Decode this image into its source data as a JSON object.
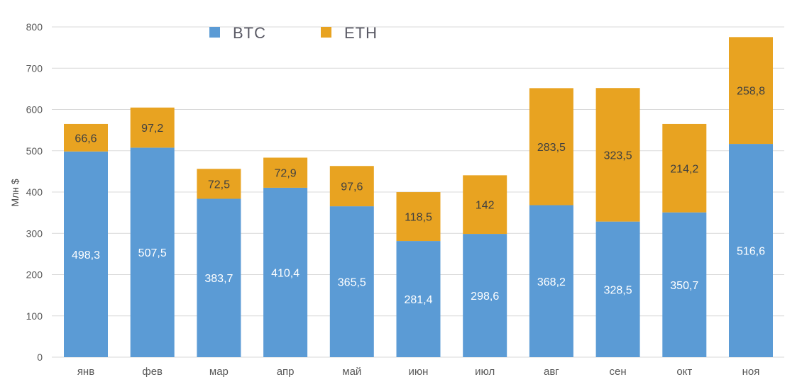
{
  "chart_data": {
    "type": "bar",
    "stacked": true,
    "title": "",
    "xlabel": "",
    "ylabel": "Млн $",
    "ylim": [
      0,
      800
    ],
    "yticks": [
      0,
      100,
      200,
      300,
      400,
      500,
      600,
      700,
      800
    ],
    "grid": true,
    "legend_position": "top-center",
    "categories": [
      "янв",
      "фев",
      "мар",
      "апр",
      "май",
      "июн",
      "июл",
      "авг",
      "сен",
      "окт",
      "ноя"
    ],
    "series": [
      {
        "name": "BTC",
        "color": "#5b9bd5",
        "values": [
          498.3,
          507.5,
          383.7,
          410.4,
          365.5,
          281.4,
          298.6,
          368.2,
          328.5,
          350.7,
          516.6
        ],
        "labels": [
          "498,3",
          "507,5",
          "383,7",
          "410,4",
          "365,5",
          "281,4",
          "298,6",
          "368,2",
          "328,5",
          "350,7",
          "516,6"
        ]
      },
      {
        "name": "ETH",
        "color": "#e8a321",
        "values": [
          66.6,
          97.2,
          72.5,
          72.9,
          97.6,
          118.5,
          142,
          283.5,
          323.5,
          214.2,
          258.8
        ],
        "labels": [
          "66,6",
          "97,2",
          "72,5",
          "72,9",
          "97,6",
          "118,5",
          "142",
          "283,5",
          "323,5",
          "214,2",
          "258,8"
        ]
      }
    ]
  }
}
